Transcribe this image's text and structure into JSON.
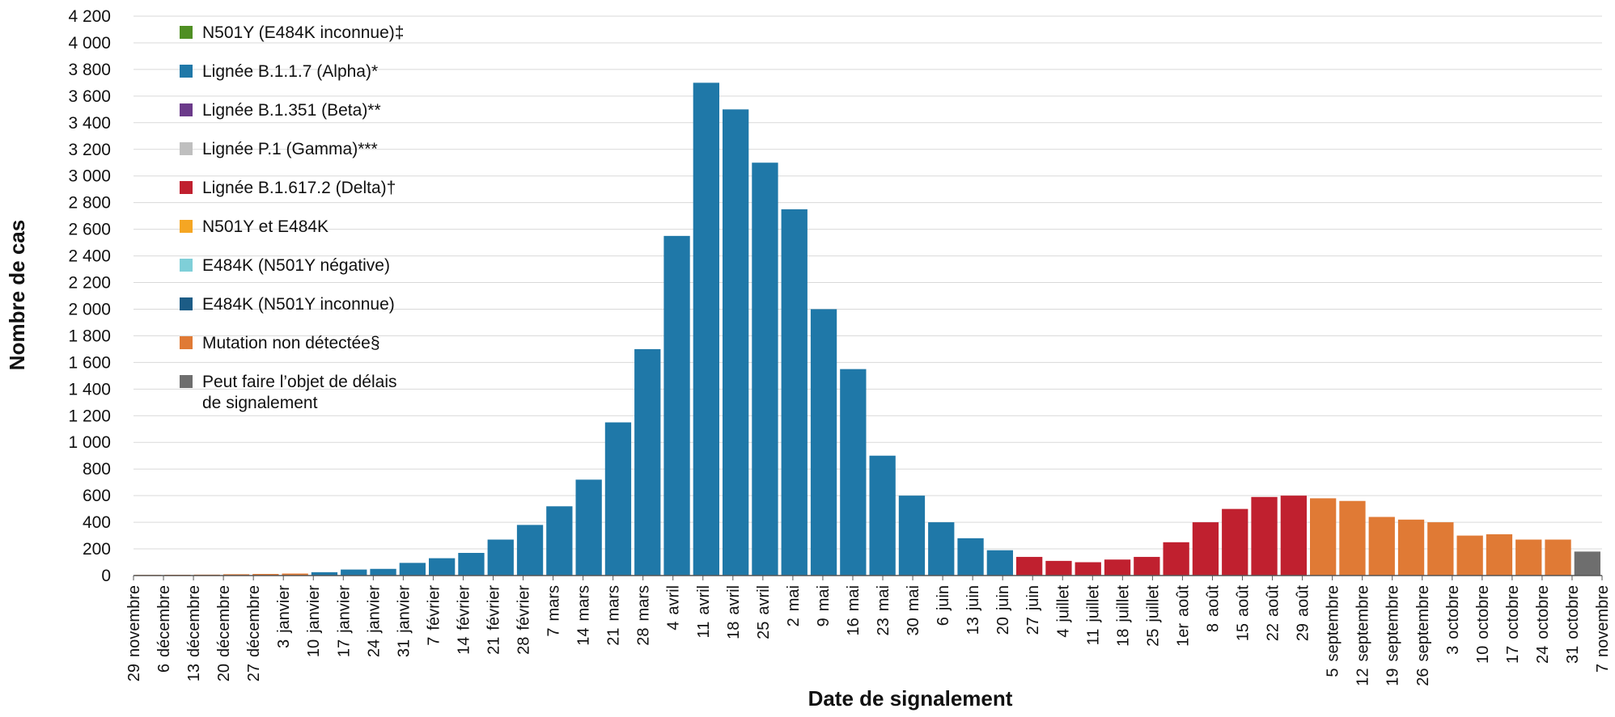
{
  "chart_data": {
    "type": "bar",
    "stacked": true,
    "xlabel": "Date de signalement",
    "ylabel": "Nombre de cas",
    "ylim": [
      0,
      4200
    ],
    "yticks": [
      0,
      200,
      400,
      600,
      800,
      1000,
      1200,
      1400,
      1600,
      1800,
      2000,
      2200,
      2400,
      2600,
      2800,
      3000,
      3200,
      3400,
      3600,
      3800,
      4000,
      4200
    ],
    "ytick_labels": [
      "0",
      "200",
      "400",
      "600",
      "800",
      "1 000",
      "1 200",
      "1 400",
      "1 600",
      "1 800",
      "2 000",
      "2 200",
      "2 400",
      "2 600",
      "2 800",
      "3 000",
      "3 200",
      "3 400",
      "3 600",
      "3 800",
      "4 000",
      "4 200"
    ],
    "grid": true,
    "legend_position": "top-left",
    "x_tick_labels": [
      [
        "29",
        "novembre"
      ],
      [
        "6",
        "décembre"
      ],
      [
        "13",
        "décembre"
      ],
      [
        "20",
        "décembre"
      ],
      [
        "27",
        "décembre"
      ],
      [
        "3",
        "janvier"
      ],
      [
        "10",
        "janvier"
      ],
      [
        "17",
        "janvier"
      ],
      [
        "24",
        "janvier"
      ],
      [
        "31",
        "janvier"
      ],
      [
        "7",
        "février"
      ],
      [
        "14",
        "février"
      ],
      [
        "21",
        "février"
      ],
      [
        "28",
        "février"
      ],
      [
        "7",
        "mars"
      ],
      [
        "14",
        "mars"
      ],
      [
        "21",
        "mars"
      ],
      [
        "28",
        "mars"
      ],
      [
        "4",
        "avril"
      ],
      [
        "11",
        "avril"
      ],
      [
        "18",
        "avril"
      ],
      [
        "25",
        "avril"
      ],
      [
        "2",
        "mai"
      ],
      [
        "9",
        "mai"
      ],
      [
        "16",
        "mai"
      ],
      [
        "23",
        "mai"
      ],
      [
        "30",
        "mai"
      ],
      [
        "6",
        "juin"
      ],
      [
        "13",
        "juin"
      ],
      [
        "20",
        "juin"
      ],
      [
        "27",
        "juin"
      ],
      [
        "4",
        "juillet"
      ],
      [
        "11",
        "juillet"
      ],
      [
        "18",
        "juillet"
      ],
      [
        "25",
        "juillet"
      ],
      [
        "1er",
        "août"
      ],
      [
        "8",
        "août"
      ],
      [
        "15",
        "août"
      ],
      [
        "22",
        "août"
      ],
      [
        "29",
        "août"
      ],
      [
        "5",
        "septembre"
      ],
      [
        "12",
        "septembre"
      ],
      [
        "19",
        "septembre"
      ],
      [
        "26",
        "septembre"
      ],
      [
        "3",
        "octobre"
      ],
      [
        "10",
        "octobre"
      ],
      [
        "17",
        "octobre"
      ],
      [
        "24",
        "octobre"
      ],
      [
        "31",
        "octobre"
      ],
      [
        "7",
        "novembre"
      ]
    ],
    "series": [
      {
        "name": "N501Y (E484K inconnue)‡",
        "color": "#4f8f23"
      },
      {
        "name": "Lignée B.1.1.7 (Alpha)*",
        "color": "#1f78a8"
      },
      {
        "name": "Lignée B.1.351 (Beta)**",
        "color": "#6b3a8a"
      },
      {
        "name": "Lignée P.1 (Gamma)***",
        "color": "#bfbfbf"
      },
      {
        "name": "Lignée B.1.617.2 (Delta)†",
        "color": "#c0202f"
      },
      {
        "name": "N501Y et E484K",
        "color": "#f5a623"
      },
      {
        "name": "E484K (N501Y négative)",
        "color": "#7fcfd8"
      },
      {
        "name": "E484K (N501Y inconnue)",
        "color": "#1c5c86"
      },
      {
        "name": "Mutation non détectée§",
        "color": "#e07a35"
      },
      {
        "name": "Peut faire l’objet de délais de signalement",
        "color": "#6e6e6e"
      }
    ],
    "weekly_totals": [
      {
        "week": "29 novembre",
        "total": 5,
        "dominant": "Mutation non détectée§"
      },
      {
        "week": "6 décembre",
        "total": 6,
        "dominant": "Mutation non détectée§"
      },
      {
        "week": "13 décembre",
        "total": 7,
        "dominant": "Mutation non détectée§"
      },
      {
        "week": "20 décembre",
        "total": 10,
        "dominant": "Mutation non détectée§"
      },
      {
        "week": "27 décembre",
        "total": 12,
        "dominant": "Mutation non détectée§"
      },
      {
        "week": "3 janvier",
        "total": 15,
        "dominant": "Mutation non détectée§"
      },
      {
        "week": "10 janvier",
        "total": 25,
        "dominant": "Lignée B.1.1.7 (Alpha)*"
      },
      {
        "week": "17 janvier",
        "total": 45,
        "dominant": "Lignée B.1.1.7 (Alpha)*"
      },
      {
        "week": "24 janvier",
        "total": 50,
        "dominant": "Lignée B.1.1.7 (Alpha)*"
      },
      {
        "week": "31 janvier",
        "total": 95,
        "dominant": "Lignée B.1.1.7 (Alpha)*"
      },
      {
        "week": "7 février",
        "total": 130,
        "dominant": "Lignée B.1.1.7 (Alpha)*"
      },
      {
        "week": "14 février",
        "total": 170,
        "dominant": "Lignée B.1.1.7 (Alpha)*"
      },
      {
        "week": "21 février",
        "total": 270,
        "dominant": "Lignée B.1.1.7 (Alpha)*"
      },
      {
        "week": "28 février",
        "total": 380,
        "dominant": "Lignée B.1.1.7 (Alpha)*"
      },
      {
        "week": "7 mars",
        "total": 520,
        "dominant": "Lignée B.1.1.7 (Alpha)*"
      },
      {
        "week": "14 mars",
        "total": 720,
        "dominant": "Lignée B.1.1.7 (Alpha)*"
      },
      {
        "week": "21 mars",
        "total": 1150,
        "dominant": "Lignée B.1.1.7 (Alpha)*"
      },
      {
        "week": "28 mars",
        "total": 1700,
        "dominant": "Lignée B.1.1.7 (Alpha)*"
      },
      {
        "week": "4 avril",
        "total": 2550,
        "dominant": "Lignée B.1.1.7 (Alpha)*"
      },
      {
        "week": "11 avril",
        "total": 3700,
        "dominant": "Lignée B.1.1.7 (Alpha)*"
      },
      {
        "week": "18 avril",
        "total": 3500,
        "dominant": "Lignée B.1.1.7 (Alpha)*"
      },
      {
        "week": "25 avril",
        "total": 3100,
        "dominant": "Lignée B.1.1.7 (Alpha)*"
      },
      {
        "week": "2 mai",
        "total": 2750,
        "dominant": "Lignée B.1.1.7 (Alpha)*"
      },
      {
        "week": "9 mai",
        "total": 2000,
        "dominant": "Lignée B.1.1.7 (Alpha)*"
      },
      {
        "week": "16 mai",
        "total": 1550,
        "dominant": "Lignée B.1.1.7 (Alpha)*"
      },
      {
        "week": "23 mai",
        "total": 900,
        "dominant": "Lignée B.1.1.7 (Alpha)*"
      },
      {
        "week": "30 mai",
        "total": 600,
        "dominant": "Lignée B.1.1.7 (Alpha)*"
      },
      {
        "week": "6 juin",
        "total": 400,
        "dominant": "Lignée B.1.1.7 (Alpha)*"
      },
      {
        "week": "13 juin",
        "total": 280,
        "dominant": "Lignée B.1.1.7 (Alpha)*"
      },
      {
        "week": "20 juin",
        "total": 190,
        "dominant": "Lignée B.1.1.7 (Alpha)*"
      },
      {
        "week": "27 juin",
        "total": 140,
        "dominant": "Lignée B.1.617.2 (Delta)†"
      },
      {
        "week": "4 juillet",
        "total": 110,
        "dominant": "Lignée B.1.617.2 (Delta)†"
      },
      {
        "week": "11 juillet",
        "total": 100,
        "dominant": "Lignée B.1.617.2 (Delta)†"
      },
      {
        "week": "18 juillet",
        "total": 120,
        "dominant": "Lignée B.1.617.2 (Delta)†"
      },
      {
        "week": "25 juillet",
        "total": 140,
        "dominant": "Lignée B.1.617.2 (Delta)†"
      },
      {
        "week": "1er août",
        "total": 250,
        "dominant": "Lignée B.1.617.2 (Delta)†"
      },
      {
        "week": "8 août",
        "total": 400,
        "dominant": "Lignée B.1.617.2 (Delta)†"
      },
      {
        "week": "15 août",
        "total": 500,
        "dominant": "Lignée B.1.617.2 (Delta)†"
      },
      {
        "week": "22 août",
        "total": 590,
        "dominant": "Lignée B.1.617.2 (Delta)†"
      },
      {
        "week": "29 août",
        "total": 600,
        "dominant": "Lignée B.1.617.2 (Delta)†"
      },
      {
        "week": "5 septembre",
        "total": 580,
        "dominant": "Mutation non détectée§"
      },
      {
        "week": "12 septembre",
        "total": 560,
        "dominant": "Mutation non détectée§"
      },
      {
        "week": "19 septembre",
        "total": 440,
        "dominant": "Mutation non détectée§"
      },
      {
        "week": "26 septembre",
        "total": 420,
        "dominant": "Mutation non détectée§"
      },
      {
        "week": "3 octobre",
        "total": 400,
        "dominant": "Mutation non détectée§"
      },
      {
        "week": "10 octobre",
        "total": 300,
        "dominant": "Mutation non détectée§"
      },
      {
        "week": "17 octobre",
        "total": 310,
        "dominant": "Mutation non détectée§"
      },
      {
        "week": "24 octobre",
        "total": 270,
        "dominant": "Mutation non détectée§"
      },
      {
        "week": "31 octobre",
        "total": 270,
        "dominant": "Mutation non détectée§"
      },
      {
        "week": "7 novembre",
        "total": 180,
        "dominant": "Peut faire l’objet de délais de signalement"
      }
    ]
  }
}
